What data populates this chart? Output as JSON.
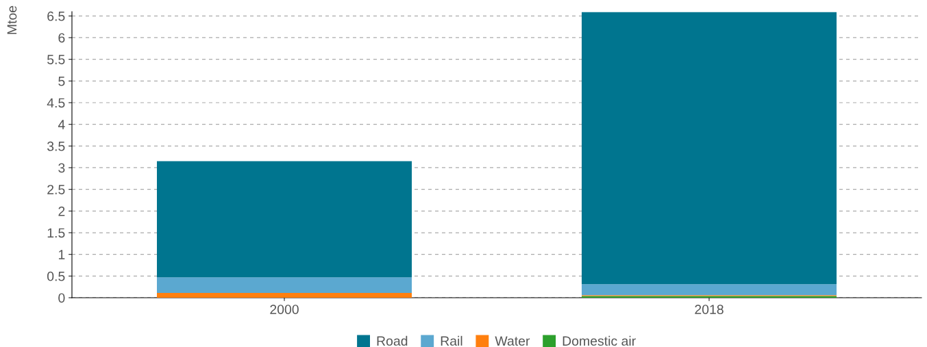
{
  "chart_data": {
    "type": "bar",
    "stacked": true,
    "ylabel": "Mtoe",
    "categories": [
      "2000",
      "2018"
    ],
    "series": [
      {
        "name": "Domestic air",
        "color": "#2ca02c",
        "values": [
          0,
          0.04
        ]
      },
      {
        "name": "Water",
        "color": "#ff7f0e",
        "values": [
          0.11,
          0.02
        ]
      },
      {
        "name": "Rail",
        "color": "#5ba8d0",
        "values": [
          0.36,
          0.25
        ]
      },
      {
        "name": "Road",
        "color": "#00758f",
        "values": [
          2.68,
          6.28
        ]
      }
    ],
    "ylim": [
      0,
      6.6
    ],
    "yticks": [
      0,
      0.5,
      1,
      1.5,
      2,
      2.5,
      3,
      3.5,
      4,
      4.5,
      5,
      5.5,
      6,
      6.5
    ],
    "grid": "y",
    "legend": "bottom"
  }
}
